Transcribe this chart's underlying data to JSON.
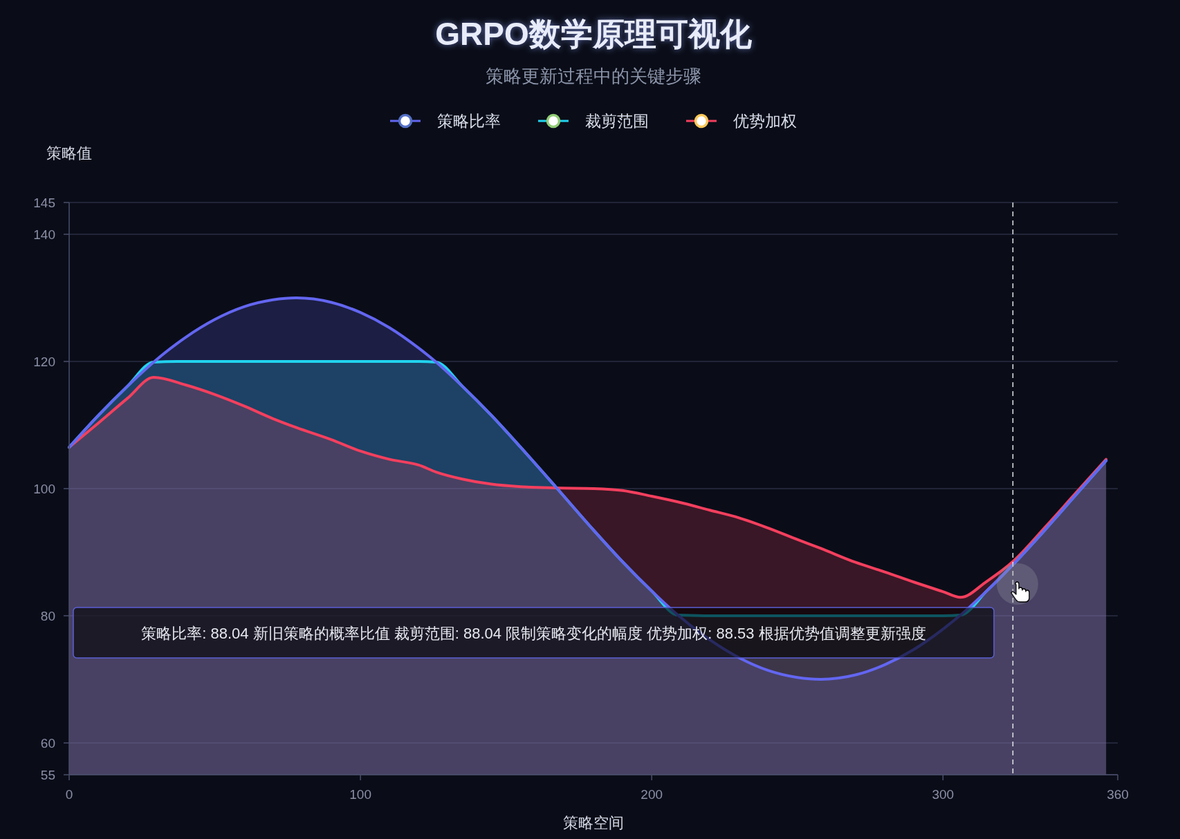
{
  "chart_data": {
    "type": "area",
    "title": "GRPO数学原理可视化",
    "subtitle": "策略更新过程中的关键步骤",
    "xlabel": "策略空间",
    "ylabel": "策略值",
    "x": [
      0,
      10,
      20,
      29,
      40,
      50,
      60,
      70,
      78,
      90,
      100,
      110,
      120,
      126,
      135,
      145,
      155,
      167,
      180,
      190,
      200,
      209,
      220,
      230,
      240,
      250,
      258,
      270,
      280,
      290,
      300,
      306,
      315,
      324,
      335,
      345,
      356
    ],
    "series": [
      {
        "name": "策略比率",
        "color": "#6366f1",
        "values": [
          106.5,
          111.5,
          116.1,
          119.9,
          123.8,
          126.6,
          128.6,
          129.7,
          130.0,
          129.3,
          127.7,
          125.3,
          122.1,
          119.9,
          116.1,
          111.5,
          106.5,
          100.3,
          93.5,
          88.5,
          83.9,
          80.1,
          76.2,
          73.4,
          71.4,
          70.3,
          70.0,
          70.7,
          72.3,
          74.7,
          77.9,
          80.1,
          83.9,
          88.04,
          93.5,
          98.7,
          104.4
        ]
      },
      {
        "name": "裁剪范围",
        "color": "#22d3ee",
        "values": [
          106.5,
          111.5,
          116.1,
          119.9,
          120,
          120,
          120,
          120,
          120,
          120,
          120,
          120,
          120,
          119.9,
          116.1,
          111.5,
          106.5,
          100.3,
          93.5,
          88.5,
          83.9,
          80.1,
          80,
          80,
          80,
          80,
          80,
          80,
          80,
          80,
          80,
          80.1,
          83.9,
          88.04,
          93.5,
          98.7,
          104.4
        ]
      },
      {
        "name": "优势加权",
        "color": "#f43f5e",
        "values": [
          106.5,
          110.3,
          114.2,
          117.5,
          116.3,
          114.8,
          113.0,
          111.0,
          109.6,
          107.7,
          105.9,
          104.6,
          103.7,
          102.6,
          101.5,
          100.7,
          100.3,
          100.1,
          100.0,
          99.7,
          98.8,
          97.9,
          96.6,
          95.4,
          93.8,
          92.0,
          90.6,
          88.4,
          86.9,
          85.3,
          83.8,
          82.9,
          85.4,
          88.53,
          93.9,
          99.0,
          104.6
        ]
      }
    ],
    "xlim": [
      0,
      360
    ],
    "xticks": [
      0,
      100,
      200,
      300,
      360
    ],
    "ylim": [
      55,
      145
    ],
    "yticks": [
      55,
      60,
      80,
      100,
      120,
      140,
      145
    ],
    "grid": "y",
    "legend": "top",
    "ref_lines": [
      {
        "axis": "x",
        "value": 324,
        "color": "#e5e7eb",
        "line_style": "dashed"
      }
    ],
    "annotations": [
      "策略比率: 88.04 新旧策略的概率比值 裁剪范围: 88.04 限制策略变化的幅度 优势加权: 88.53 根据优势值调整更新强度"
    ]
  }
}
